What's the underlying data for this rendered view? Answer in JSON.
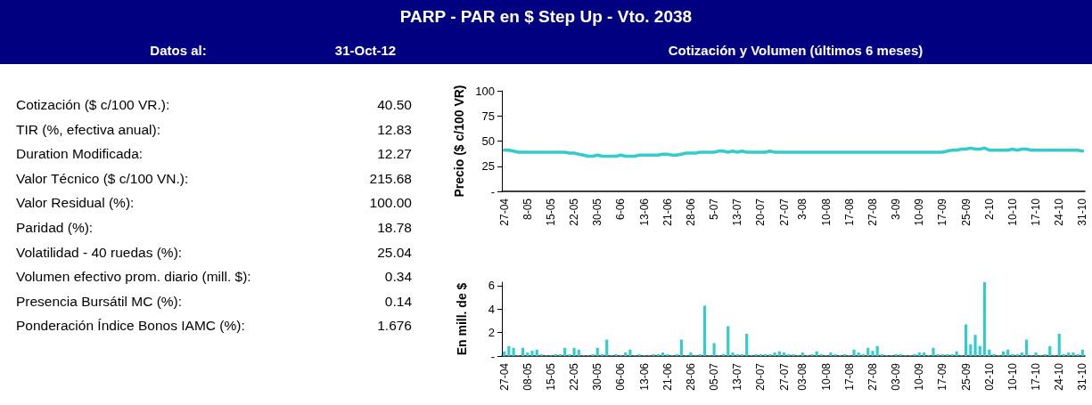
{
  "chart_data": [
    {
      "type": "other",
      "title": "PARP - PAR en $ Step Up - Vto. 2038",
      "annotations": [
        "Datos al:",
        "31-Oct-12",
        "Cotización ($ c/100 VR.):",
        "40.50",
        "TIR (%, efectiva anual):",
        "12.83",
        "Duration Modificada:",
        "12.27",
        "Valor Técnico ($ c/100 VN.):",
        "215.68",
        "Valor Residual (%):",
        "100.00",
        "Paridad (%):",
        "18.78",
        "Volatilidad - 40 ruedas (%):",
        "25.04",
        "Volumen efectivo prom. diario (mill. $):",
        "0.34",
        "Presencia Bursátil MC (%):",
        "0.14",
        "Ponderación Índice Bonos IAMC (%):",
        "1.676"
      ]
    },
    {
      "type": "line",
      "title": "Cotización y Volumen (últimos 6 meses)",
      "ylabel": "Precio ($ c/100 VR)",
      "color": "#33cccc",
      "marker": "none",
      "ylim": [
        0,
        100
      ],
      "yticks": [
        {
          "value": 0,
          "label": "-"
        },
        25,
        50,
        75,
        100
      ],
      "categories": [
        "27-04",
        null,
        null,
        null,
        null,
        "8-05",
        null,
        null,
        null,
        null,
        "15-05",
        null,
        null,
        null,
        null,
        "22-05",
        null,
        null,
        null,
        null,
        "30-05",
        null,
        null,
        null,
        null,
        "6-06",
        null,
        null,
        null,
        null,
        "13-06",
        null,
        null,
        null,
        null,
        "21-06",
        null,
        null,
        null,
        null,
        "28-06",
        null,
        null,
        null,
        null,
        "5-07",
        null,
        null,
        null,
        null,
        "13-07",
        null,
        null,
        null,
        null,
        "20-07",
        null,
        null,
        null,
        null,
        "27-07",
        null,
        null,
        null,
        "3-08",
        null,
        null,
        null,
        null,
        "10-08",
        null,
        null,
        null,
        null,
        "17-08",
        null,
        null,
        null,
        null,
        "27-08",
        null,
        null,
        null,
        null,
        "3-09",
        null,
        null,
        null,
        null,
        "10-09",
        null,
        null,
        null,
        null,
        "17-09",
        null,
        null,
        null,
        null,
        "25-09",
        null,
        null,
        null,
        null,
        "2-10",
        null,
        null,
        null,
        null,
        "10-10",
        null,
        null,
        null,
        null,
        "17-10",
        null,
        null,
        null,
        null,
        "24-10",
        null,
        null,
        null,
        null,
        "31-10"
      ],
      "values": [
        41,
        41,
        40,
        39,
        39,
        39,
        39,
        39,
        39,
        39,
        39,
        39,
        39,
        39,
        38,
        38,
        37,
        36,
        35,
        35,
        36,
        35,
        35,
        35,
        35,
        36,
        35,
        35,
        35,
        36,
        36,
        36,
        36,
        36,
        37,
        37,
        36,
        36,
        37,
        38,
        38,
        38,
        39,
        39,
        39,
        39,
        40,
        40,
        39,
        40,
        39,
        40,
        39,
        39,
        39,
        39,
        39,
        40,
        39,
        39,
        39,
        39,
        39,
        39,
        39,
        39,
        39,
        39,
        39,
        39,
        39,
        39,
        39,
        39,
        39,
        39,
        39,
        39,
        39,
        39,
        39,
        39,
        39,
        39,
        39,
        39,
        39,
        39,
        39,
        39,
        39,
        39,
        39,
        39,
        39,
        40,
        41,
        41,
        42,
        42,
        43,
        42,
        42,
        43,
        41,
        41,
        41,
        41,
        41,
        42,
        41,
        42,
        42,
        41,
        41,
        41,
        41,
        41,
        41,
        41,
        41,
        41,
        41,
        41,
        40
      ]
    },
    {
      "type": "bar",
      "ylabel": "En mill. de $",
      "color": "#33cccc",
      "ylim": [
        0,
        6.3
      ],
      "yticks": [
        {
          "value": 0,
          "label": "-"
        },
        2,
        4,
        6
      ],
      "categories": [
        "27-04",
        null,
        null,
        null,
        null,
        "08-05",
        null,
        null,
        null,
        null,
        "15-05",
        null,
        null,
        null,
        null,
        "22-05",
        null,
        null,
        null,
        null,
        "30-05",
        null,
        null,
        null,
        null,
        "06-06",
        null,
        null,
        null,
        null,
        "13-06",
        null,
        null,
        null,
        null,
        "21-06",
        null,
        null,
        null,
        null,
        "28-06",
        null,
        null,
        null,
        null,
        "05-07",
        null,
        null,
        null,
        null,
        "13-07",
        null,
        null,
        null,
        null,
        "20-07",
        null,
        null,
        null,
        null,
        "27-07",
        null,
        null,
        null,
        "03-08",
        null,
        null,
        null,
        null,
        "10-08",
        null,
        null,
        null,
        null,
        "17-08",
        null,
        null,
        null,
        null,
        "27-08",
        null,
        null,
        null,
        null,
        "03-09",
        null,
        null,
        null,
        null,
        "10-09",
        null,
        null,
        null,
        null,
        "17-09",
        null,
        null,
        null,
        null,
        "25-09",
        null,
        null,
        null,
        null,
        "02-10",
        null,
        null,
        null,
        null,
        "10-10",
        null,
        null,
        null,
        null,
        "17-10",
        null,
        null,
        null,
        null,
        "24-10",
        null,
        null,
        null,
        null,
        "31-10"
      ],
      "values": [
        0.4,
        0.85,
        0.7,
        0.05,
        0.7,
        0.3,
        0.45,
        0.55,
        0.15,
        0.05,
        0.05,
        0.15,
        0.15,
        0.7,
        0.15,
        0.7,
        0.55,
        0.05,
        0.05,
        0.15,
        0.7,
        0.15,
        1.4,
        0.05,
        0.15,
        0.05,
        0.3,
        0.55,
        0.05,
        0.15,
        0.05,
        0.05,
        0.15,
        0.15,
        0.3,
        0.15,
        0.05,
        0.15,
        1.4,
        0.05,
        0.3,
        0.05,
        0.15,
        4.3,
        0.05,
        1.1,
        0.05,
        0.15,
        2.55,
        0.3,
        0.15,
        0.15,
        1.9,
        0.05,
        0.15,
        0.15,
        0.15,
        0.15,
        0.3,
        0.4,
        0.3,
        0.15,
        0.15,
        0.05,
        0.3,
        0.05,
        0.15,
        0.4,
        0.15,
        0.05,
        0.3,
        0.15,
        0.05,
        0.15,
        0.05,
        0.55,
        0.3,
        0.15,
        0.7,
        0.45,
        0.85,
        0.15,
        0.05,
        0.05,
        0.15,
        0.15,
        0.05,
        0.05,
        0.15,
        0.3,
        0.3,
        0.05,
        0.7,
        0.15,
        0.15,
        0.15,
        0.15,
        0.4,
        0.05,
        2.7,
        1.0,
        1.8,
        0.85,
        6.3,
        0.55,
        0.15,
        0.05,
        0.4,
        0.55,
        0.15,
        0.15,
        0.3,
        1.4,
        0.05,
        0.3,
        0.05,
        0.15,
        0.85,
        0.05,
        1.9,
        0.15,
        0.3,
        0.3,
        0.15,
        0.55
      ]
    }
  ]
}
